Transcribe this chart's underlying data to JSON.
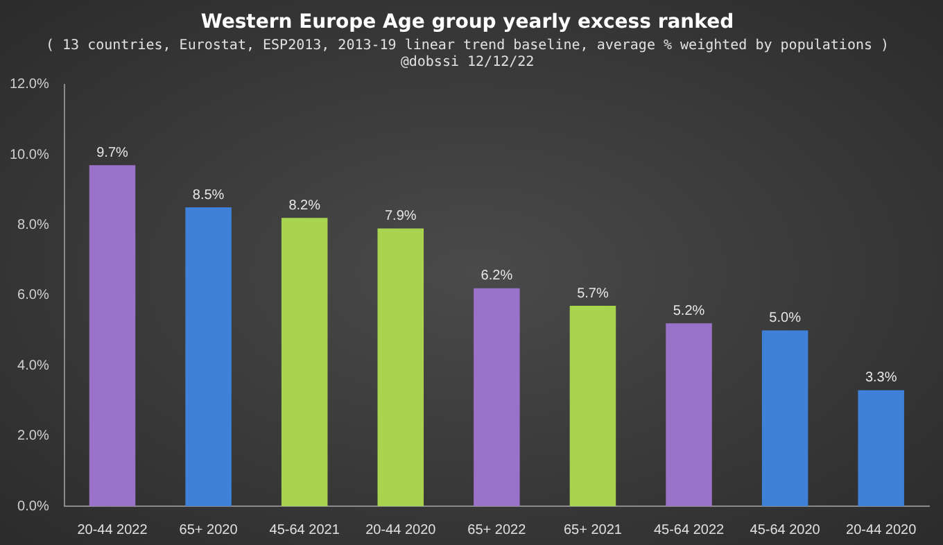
{
  "chart_data": {
    "type": "bar",
    "title": "Western Europe Age group yearly excess ranked",
    "subtitle": "( 13 countries, Eurostat, ESP2013, 2013-19 linear trend baseline, average % weighted by populations )\n@dobssi 12/12/22",
    "categories": [
      "20-44 2022",
      "65+ 2020",
      "45-64 2021",
      "20-44 2020",
      "65+ 2022",
      "65+ 2021",
      "45-64 2022",
      "45-64 2020",
      "20-44 2020"
    ],
    "values": [
      9.7,
      8.5,
      8.2,
      7.9,
      6.2,
      5.7,
      5.2,
      5.0,
      3.3
    ],
    "colors": [
      "#9b72c9",
      "#3f80d8",
      "#a9d44f",
      "#a9d44f",
      "#9b72c9",
      "#a9d44f",
      "#9b72c9",
      "#3f80d8",
      "#3f80d8"
    ],
    "value_labels": [
      "9.7%",
      "8.5%",
      "8.2%",
      "7.9%",
      "6.2%",
      "5.7%",
      "5.2%",
      "5.0%",
      "3.3%"
    ],
    "ylim": [
      0,
      12
    ],
    "yticks": [
      {
        "value": 0,
        "label": "0.0%"
      },
      {
        "value": 2,
        "label": "2.0%"
      },
      {
        "value": 4,
        "label": "4.0%"
      },
      {
        "value": 6,
        "label": "6.0%"
      },
      {
        "value": 8,
        "label": "8.0%"
      },
      {
        "value": 10,
        "label": "10.0%"
      },
      {
        "value": 12,
        "label": "12.0%"
      }
    ],
    "grid": false,
    "legend": false
  }
}
